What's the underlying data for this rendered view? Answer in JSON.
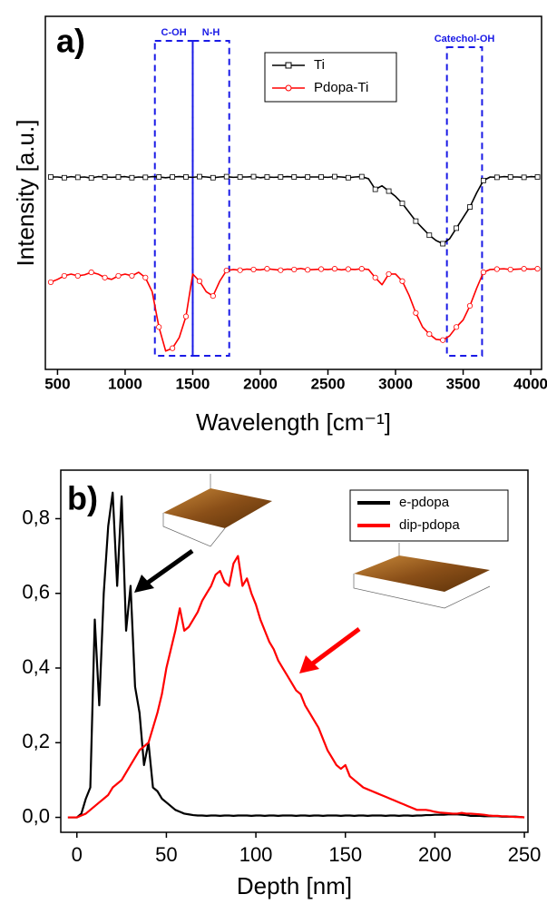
{
  "chart_data": [
    {
      "type": "line",
      "panel_label": "a)",
      "x_label": "Wavelength [cm⁻¹]",
      "y_label": "Intensity [a.u.]",
      "xlim": [
        410,
        4080
      ],
      "xticks": [
        500,
        1000,
        1500,
        2000,
        2500,
        3000,
        3500,
        4000
      ],
      "ylim": [
        0,
        100
      ],
      "legend": "upper center",
      "annotations": [
        {
          "text": "C-OH",
          "x_range": [
            1220,
            1500
          ]
        },
        {
          "text": "N-H",
          "x_range": [
            1500,
            1770
          ]
        },
        {
          "text": "Catechol-OH",
          "x_range": [
            3380,
            3640
          ]
        }
      ],
      "x": [
        450,
        500,
        550,
        600,
        650,
        700,
        750,
        800,
        850,
        900,
        950,
        1000,
        1050,
        1100,
        1150,
        1200,
        1250,
        1300,
        1350,
        1400,
        1450,
        1500,
        1550,
        1600,
        1650,
        1700,
        1750,
        1800,
        1850,
        1900,
        1950,
        2000,
        2050,
        2100,
        2150,
        2200,
        2250,
        2300,
        2350,
        2400,
        2450,
        2500,
        2550,
        2600,
        2650,
        2700,
        2750,
        2800,
        2850,
        2900,
        2950,
        3000,
        3050,
        3100,
        3150,
        3200,
        3250,
        3300,
        3350,
        3400,
        3450,
        3500,
        3550,
        3600,
        3650,
        3700,
        3750,
        3800,
        3850,
        3900,
        3950,
        4000,
        4050
      ],
      "series": [
        {
          "name": "Ti",
          "color": "#000000",
          "marker": "square",
          "values": [
            54.5,
            54.5,
            54.3,
            54.6,
            54.4,
            54.5,
            54.2,
            54.6,
            54.5,
            54.4,
            54.5,
            54.6,
            54.3,
            54.5,
            54.4,
            54.6,
            54.5,
            54.3,
            54.5,
            54.6,
            54.5,
            54.4,
            54.6,
            54.5,
            54.3,
            54.5,
            54.6,
            54.4,
            54.5,
            54.5,
            54.6,
            54.3,
            54.5,
            54.4,
            54.5,
            54.6,
            54.5,
            54.4,
            54.5,
            54.5,
            54.5,
            54.4,
            54.6,
            54.5,
            54.3,
            54.5,
            54.6,
            54,
            51,
            52,
            50.5,
            49,
            47,
            44.5,
            42,
            40,
            38,
            36.5,
            35.6,
            37,
            40,
            43,
            46,
            50,
            53.5,
            54.5,
            54.4,
            54.6,
            54.5,
            54.5,
            54.4,
            54.6,
            54.5
          ]
        },
        {
          "name": "Pdopa-Ti",
          "color": "#ff0000",
          "marker": "circle",
          "values": [
            24.7,
            25.5,
            26.5,
            27,
            26.5,
            26.8,
            27.5,
            27,
            26,
            25.5,
            26.5,
            27,
            26.5,
            27.5,
            26,
            22,
            12,
            5.2,
            6,
            9,
            15,
            27,
            25,
            22,
            20.8,
            25,
            28,
            28.3,
            28.1,
            28.4,
            28.3,
            28.2,
            28.5,
            28.3,
            28.1,
            28.4,
            28.3,
            28.6,
            28.2,
            28.3,
            28.4,
            28.3,
            28.5,
            28.2,
            28.4,
            28.3,
            28.5,
            28.3,
            26,
            24,
            27,
            27,
            25,
            21,
            16,
            12,
            10,
            8.5,
            8.3,
            9.5,
            12,
            14,
            18,
            23,
            27.5,
            28.3,
            28.4,
            28.5,
            28.3,
            28.4,
            28.5,
            28.4,
            28.5
          ]
        }
      ]
    },
    {
      "type": "line",
      "panel_label": "b)",
      "x_label": "Depth [nm]",
      "xlim": [
        -9,
        252
      ],
      "xticks": [
        0,
        50,
        100,
        150,
        200,
        250
      ],
      "ylim": [
        -0.04,
        0.93
      ],
      "yticks": [
        {
          "value": 0,
          "label": "0,0"
        },
        {
          "value": 0.2,
          "label": "0,2"
        },
        {
          "value": 0.4,
          "label": "0,4"
        },
        {
          "value": 0.6,
          "label": "0,6"
        },
        {
          "value": 0.8,
          "label": "0,8"
        }
      ],
      "legend": "upper right",
      "x": [
        -5,
        -2.5,
        0,
        2.5,
        5,
        7.5,
        10,
        12.5,
        15,
        17.5,
        20,
        22.5,
        25,
        27.5,
        30,
        32.5,
        35,
        37.5,
        40,
        42.5,
        45,
        47.5,
        50,
        52.5,
        55,
        57.5,
        60,
        62.5,
        65,
        67.5,
        70,
        72.5,
        75,
        77.5,
        80,
        82.5,
        85,
        87.5,
        90,
        92.5,
        95,
        97.5,
        100,
        102.5,
        105,
        107.5,
        110,
        112.5,
        115,
        117.5,
        120,
        122.5,
        125,
        127.5,
        130,
        132.5,
        135,
        137.5,
        140,
        142.5,
        145,
        147.5,
        150,
        152.5,
        155,
        157.5,
        160,
        162.5,
        165,
        167.5,
        170,
        172.5,
        175,
        177.5,
        180,
        182.5,
        185,
        187.5,
        190,
        192.5,
        195,
        197.5,
        200,
        202.5,
        205,
        207.5,
        210,
        212.5,
        215,
        217.5,
        220,
        222.5,
        225,
        227.5,
        230,
        232.5,
        235,
        237.5,
        240,
        242.5,
        245,
        247.5,
        250
      ],
      "series": [
        {
          "name": "e-pdopa",
          "color": "#000000",
          "values": [
            0,
            0,
            0,
            0.01,
            0.05,
            0.08,
            0.53,
            0.3,
            0.6,
            0.78,
            0.87,
            0.62,
            0.86,
            0.5,
            0.62,
            0.35,
            0.28,
            0.14,
            0.2,
            0.08,
            0.07,
            0.05,
            0.04,
            0.03,
            0.02,
            0.015,
            0.01,
            0.008,
            0.006,
            0.005,
            0.005,
            0.004,
            0.005,
            0.005,
            0.004,
            0.005,
            0.005,
            0.004,
            0.005,
            0.005,
            0.005,
            0.004,
            0.005,
            0.005,
            0.004,
            0.005,
            0.005,
            0.004,
            0.005,
            0.005,
            0.005,
            0.004,
            0.005,
            0.005,
            0.004,
            0.005,
            0.005,
            0.004,
            0.005,
            0.005,
            0.005,
            0.004,
            0.005,
            0.005,
            0.004,
            0.005,
            0.005,
            0.004,
            0.005,
            0.005,
            0.005,
            0.004,
            0.005,
            0.005,
            0.004,
            0.005,
            0.005,
            0.004,
            0.005,
            0.005,
            0.006,
            0.006,
            0.007,
            0.007,
            0.007,
            0.008,
            0.008,
            0.008,
            0.007,
            0.006,
            0.004,
            0.004,
            0.004,
            0.003,
            0.003,
            0.003,
            0.003,
            0.002,
            0.002,
            0.002,
            0.002,
            0.001,
            0
          ]
        },
        {
          "name": "dip-pdopa",
          "color": "#ff0000",
          "values": [
            0,
            0,
            0,
            0.005,
            0.01,
            0.02,
            0.03,
            0.04,
            0.05,
            0.06,
            0.08,
            0.09,
            0.1,
            0.12,
            0.14,
            0.16,
            0.18,
            0.19,
            0.2,
            0.24,
            0.28,
            0.33,
            0.4,
            0.45,
            0.5,
            0.56,
            0.5,
            0.51,
            0.53,
            0.55,
            0.58,
            0.6,
            0.62,
            0.65,
            0.66,
            0.63,
            0.62,
            0.68,
            0.7,
            0.62,
            0.64,
            0.6,
            0.57,
            0.53,
            0.5,
            0.47,
            0.45,
            0.42,
            0.4,
            0.38,
            0.36,
            0.34,
            0.33,
            0.3,
            0.28,
            0.26,
            0.24,
            0.21,
            0.18,
            0.16,
            0.14,
            0.13,
            0.14,
            0.11,
            0.1,
            0.09,
            0.08,
            0.075,
            0.07,
            0.065,
            0.06,
            0.055,
            0.05,
            0.045,
            0.04,
            0.035,
            0.03,
            0.025,
            0.02,
            0.02,
            0.02,
            0.018,
            0.015,
            0.013,
            0.012,
            0.011,
            0.01,
            0.01,
            0.012,
            0.01,
            0.01,
            0.009,
            0.008,
            0.007,
            0.005,
            0.004,
            0.004,
            0.003,
            0.003,
            0.002,
            0.001,
            0.001,
            0
          ]
        }
      ]
    }
  ]
}
